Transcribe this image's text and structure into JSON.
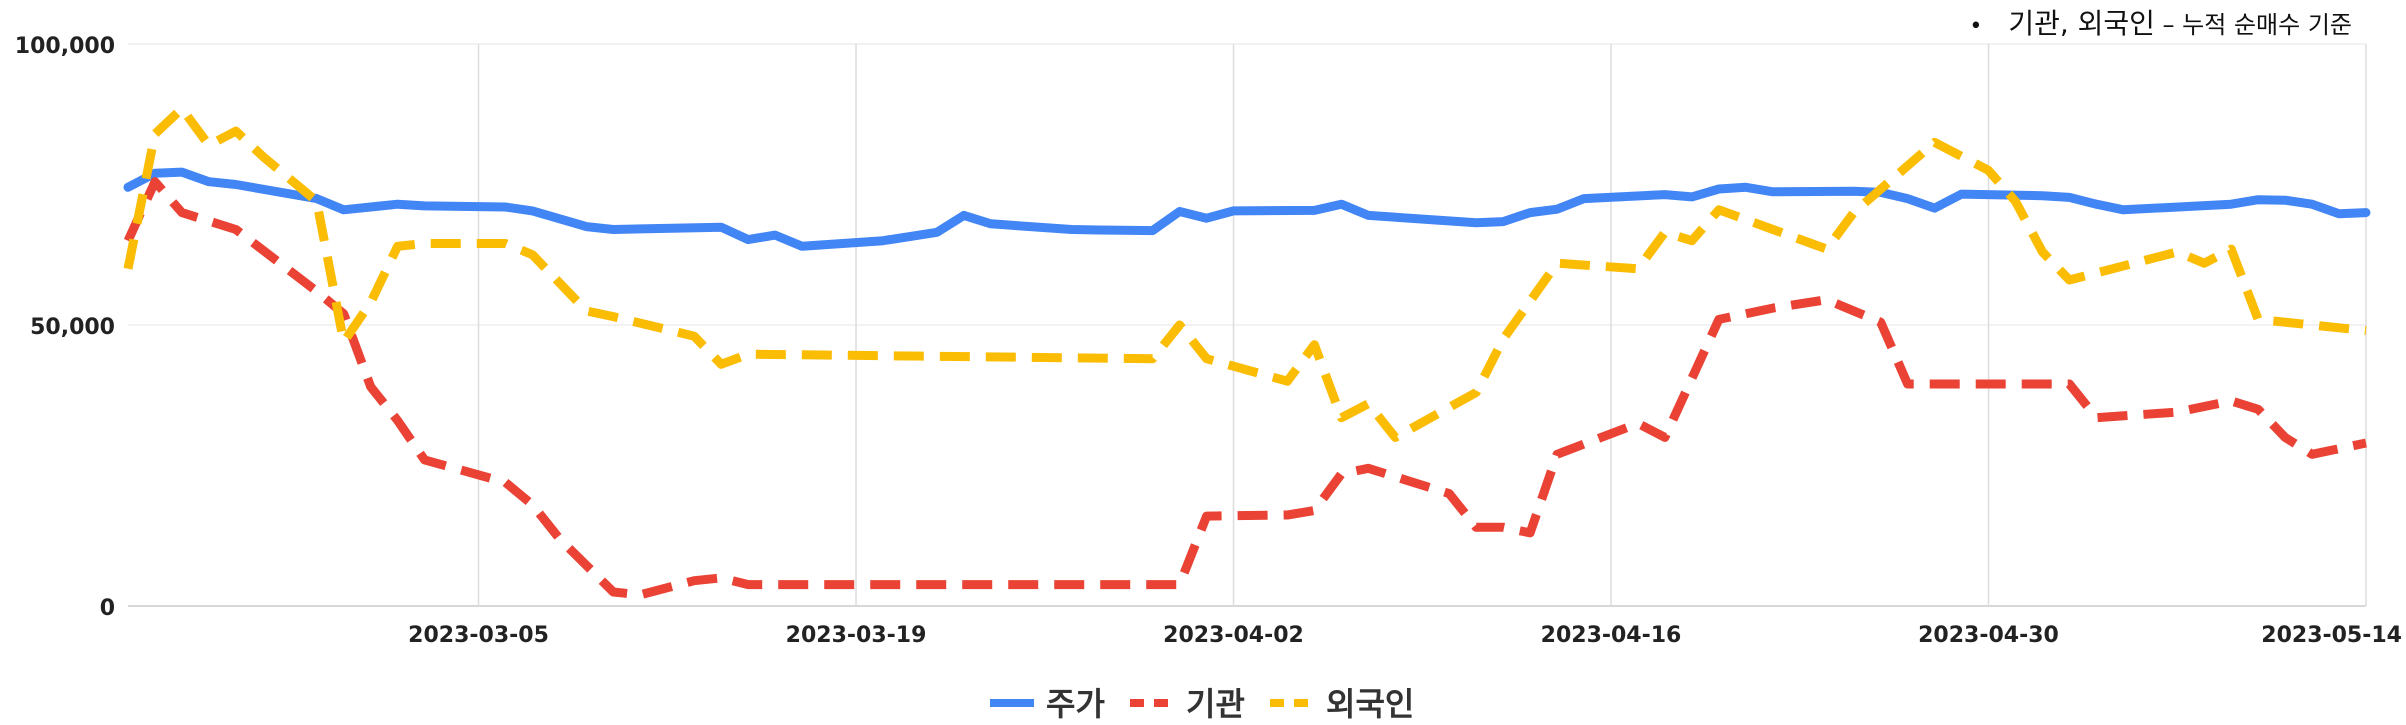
{
  "note": {
    "bullet": "•",
    "strong": "기관, 외국인",
    "light": " – 누적 순매수 기준"
  },
  "chart_data": {
    "type": "line",
    "title": "",
    "xlabel": "",
    "ylabel": "",
    "ylim": [
      0,
      100000
    ],
    "y_ticks": [
      {
        "value": 0,
        "label": "0"
      },
      {
        "value": 50000,
        "label": "50,000"
      },
      {
        "value": 100000,
        "label": "100,000"
      }
    ],
    "x_range": [
      "2023-02-20",
      "2023-05-14"
    ],
    "x_ticks": [
      "2023-03-05",
      "2023-03-19",
      "2023-04-02",
      "2023-04-16",
      "2023-04-30",
      "2023-05-14"
    ],
    "grid": true,
    "legend_position": "bottom",
    "series": [
      {
        "name": "주가",
        "color": "#4285F4",
        "style": "solid",
        "points": [
          [
            "2023-02-20",
            74500
          ],
          [
            "2023-02-21",
            77000
          ],
          [
            "2023-02-22",
            77200
          ],
          [
            "2023-02-23",
            75500
          ],
          [
            "2023-02-24",
            75000
          ],
          [
            "2023-02-27",
            72500
          ],
          [
            "2023-02-28",
            70500
          ],
          [
            "2023-03-02",
            71500
          ],
          [
            "2023-03-03",
            71200
          ],
          [
            "2023-03-06",
            71000
          ],
          [
            "2023-03-07",
            70300
          ],
          [
            "2023-03-09",
            67500
          ],
          [
            "2023-03-10",
            67000
          ],
          [
            "2023-03-14",
            67400
          ],
          [
            "2023-03-15",
            65200
          ],
          [
            "2023-03-16",
            66000
          ],
          [
            "2023-03-17",
            64000
          ],
          [
            "2023-03-20",
            65000
          ],
          [
            "2023-03-22",
            66500
          ],
          [
            "2023-03-23",
            69500
          ],
          [
            "2023-03-24",
            68000
          ],
          [
            "2023-03-27",
            67000
          ],
          [
            "2023-03-28",
            66900
          ],
          [
            "2023-03-30",
            66800
          ],
          [
            "2023-03-31",
            70200
          ],
          [
            "2023-04-01",
            69000
          ],
          [
            "2023-04-02",
            70300
          ],
          [
            "2023-04-05",
            70400
          ],
          [
            "2023-04-06",
            71500
          ],
          [
            "2023-04-07",
            69500
          ],
          [
            "2023-04-11",
            68200
          ],
          [
            "2023-04-12",
            68400
          ],
          [
            "2023-04-13",
            70000
          ],
          [
            "2023-04-14",
            70600
          ],
          [
            "2023-04-15",
            72500
          ],
          [
            "2023-04-18",
            73200
          ],
          [
            "2023-04-19",
            72800
          ],
          [
            "2023-04-20",
            74200
          ],
          [
            "2023-04-21",
            74500
          ],
          [
            "2023-04-22",
            73700
          ],
          [
            "2023-04-25",
            73800
          ],
          [
            "2023-04-26",
            73600
          ],
          [
            "2023-04-27",
            72500
          ],
          [
            "2023-04-28",
            70800
          ],
          [
            "2023-04-29",
            73300
          ],
          [
            "2023-05-02",
            73000
          ],
          [
            "2023-05-03",
            72700
          ],
          [
            "2023-05-04",
            71500
          ],
          [
            "2023-05-05",
            70500
          ],
          [
            "2023-05-09",
            71500
          ],
          [
            "2023-05-10",
            72300
          ],
          [
            "2023-05-11",
            72200
          ],
          [
            "2023-05-12",
            71500
          ],
          [
            "2023-05-13",
            69800
          ],
          [
            "2023-05-14",
            70000
          ]
        ]
      },
      {
        "name": "기관",
        "color": "#EA4335",
        "style": "dashed",
        "points": [
          [
            "2023-02-20",
            65000
          ],
          [
            "2023-02-21",
            75500
          ],
          [
            "2023-02-22",
            70000
          ],
          [
            "2023-02-24",
            67000
          ],
          [
            "2023-02-27",
            56000
          ],
          [
            "2023-02-28",
            52000
          ],
          [
            "2023-03-01",
            39000
          ],
          [
            "2023-03-02",
            33000
          ],
          [
            "2023-03-03",
            26000
          ],
          [
            "2023-03-06",
            22000
          ],
          [
            "2023-03-07",
            18000
          ],
          [
            "2023-03-08",
            12000
          ],
          [
            "2023-03-10",
            2500
          ],
          [
            "2023-03-11",
            2000
          ],
          [
            "2023-03-13",
            4500
          ],
          [
            "2023-03-14",
            5000
          ],
          [
            "2023-03-15",
            3800
          ],
          [
            "2023-03-31",
            3800
          ],
          [
            "2023-04-01",
            16000
          ],
          [
            "2023-04-04",
            16200
          ],
          [
            "2023-04-05",
            17000
          ],
          [
            "2023-04-06",
            23500
          ],
          [
            "2023-04-07",
            24500
          ],
          [
            "2023-04-10",
            20000
          ],
          [
            "2023-04-11",
            14000
          ],
          [
            "2023-04-12",
            14000
          ],
          [
            "2023-04-13",
            13000
          ],
          [
            "2023-04-14",
            27000
          ],
          [
            "2023-04-17",
            32500
          ],
          [
            "2023-04-18",
            30000
          ],
          [
            "2023-04-20",
            51000
          ],
          [
            "2023-04-22",
            53000
          ],
          [
            "2023-04-24",
            54500
          ],
          [
            "2023-04-26",
            50500
          ],
          [
            "2023-04-27",
            39500
          ],
          [
            "2023-05-03",
            39500
          ],
          [
            "2023-05-04",
            33500
          ],
          [
            "2023-05-07",
            34500
          ],
          [
            "2023-05-09",
            36500
          ],
          [
            "2023-05-10",
            35000
          ],
          [
            "2023-05-11",
            30000
          ],
          [
            "2023-05-12",
            27000
          ],
          [
            "2023-05-14",
            29000
          ]
        ]
      },
      {
        "name": "외국인",
        "color": "#FBBC04",
        "style": "dashed",
        "points": [
          [
            "2023-02-20",
            60000
          ],
          [
            "2023-02-21",
            84000
          ],
          [
            "2023-02-22",
            88500
          ],
          [
            "2023-02-23",
            82000
          ],
          [
            "2023-02-24",
            84500
          ],
          [
            "2023-02-25",
            80000
          ],
          [
            "2023-02-27",
            72000
          ],
          [
            "2023-02-28",
            47000
          ],
          [
            "2023-03-01",
            54000
          ],
          [
            "2023-03-02",
            64000
          ],
          [
            "2023-03-03",
            64500
          ],
          [
            "2023-03-06",
            64500
          ],
          [
            "2023-03-07",
            62500
          ],
          [
            "2023-03-09",
            52500
          ],
          [
            "2023-03-10",
            51500
          ],
          [
            "2023-03-13",
            48000
          ],
          [
            "2023-03-14",
            43000
          ],
          [
            "2023-03-15",
            44800
          ],
          [
            "2023-03-30",
            44000
          ],
          [
            "2023-03-31",
            50000
          ],
          [
            "2023-04-01",
            44000
          ],
          [
            "2023-04-04",
            40000
          ],
          [
            "2023-04-05",
            46500
          ],
          [
            "2023-04-06",
            33500
          ],
          [
            "2023-04-07",
            36000
          ],
          [
            "2023-04-08",
            30000
          ],
          [
            "2023-04-11",
            38000
          ],
          [
            "2023-04-12",
            47500
          ],
          [
            "2023-04-14",
            61000
          ],
          [
            "2023-04-17",
            60000
          ],
          [
            "2023-04-18",
            66500
          ],
          [
            "2023-04-19",
            65000
          ],
          [
            "2023-04-20",
            70500
          ],
          [
            "2023-04-24",
            63500
          ],
          [
            "2023-04-25",
            70000
          ],
          [
            "2023-04-28",
            82500
          ],
          [
            "2023-04-30",
            77500
          ],
          [
            "2023-05-01",
            72000
          ],
          [
            "2023-05-02",
            63000
          ],
          [
            "2023-05-03",
            58000
          ],
          [
            "2023-05-07",
            63000
          ],
          [
            "2023-05-08",
            61000
          ],
          [
            "2023-05-09",
            63500
          ],
          [
            "2023-05-10",
            51000
          ],
          [
            "2023-05-14",
            49000
          ]
        ]
      }
    ]
  }
}
